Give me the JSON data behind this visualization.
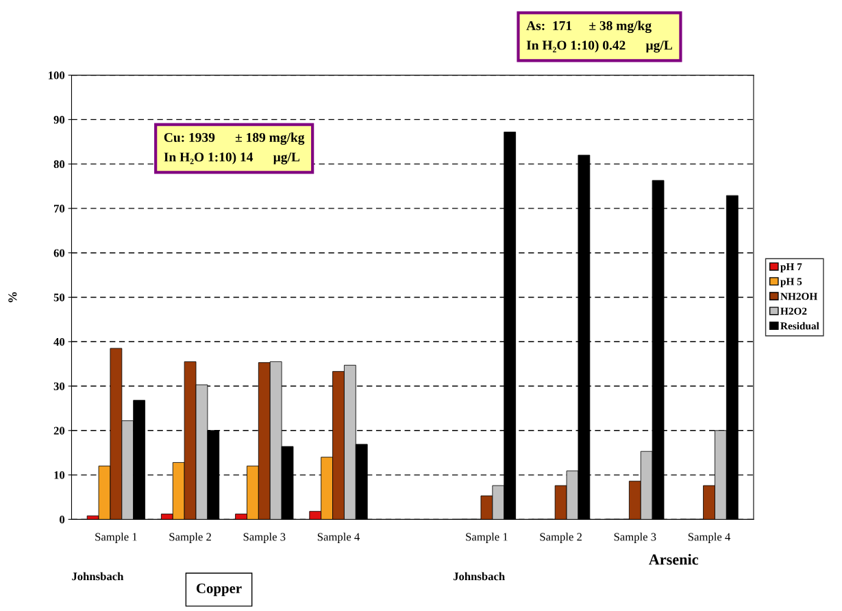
{
  "chart_data": {
    "type": "bar",
    "ylabel": "%",
    "categories": [
      "Sample 1",
      "Sample 2",
      "Sample 3",
      "Sample 4",
      null,
      "Sample 1",
      "Sample 2",
      "Sample 3",
      "Sample 4"
    ],
    "series": [
      {
        "name": "pH 7",
        "color": "#e01010",
        "values": [
          0.8,
          1.2,
          1.2,
          1.8,
          null,
          0,
          0,
          0,
          0
        ]
      },
      {
        "name": "pH 5",
        "color": "#f5a020",
        "values": [
          12,
          12.8,
          12,
          14,
          null,
          0,
          0,
          0,
          0
        ]
      },
      {
        "name": "NH2OH",
        "color": "#9a3a08",
        "values": [
          38.5,
          35.5,
          35.3,
          33.3,
          null,
          5.3,
          7.6,
          8.6,
          7.6
        ]
      },
      {
        "name": "H2O2",
        "color": "#c0c0c0",
        "values": [
          22.2,
          30.3,
          35.5,
          34.7,
          null,
          7.6,
          10.9,
          15.3,
          20
        ]
      },
      {
        "name": "Residual",
        "color": "#000000",
        "values": [
          26.8,
          20,
          16.4,
          16.9,
          null,
          87.2,
          82,
          76.3,
          72.9
        ]
      }
    ],
    "ylim": [
      0,
      100
    ],
    "yticks": [
      0,
      10,
      20,
      30,
      40,
      50,
      60,
      70,
      80,
      90,
      100
    ],
    "grid": "y",
    "legend": "right",
    "annotations": [
      "Cu: 1939      ± 189 mg/kg\nIn H₂O 1:10) 14      µg/L",
      "As:  171     ± 38 mg/kg\nIn H₂O 1:10) 0.42      µg/L",
      "Johnsbach",
      "Copper",
      "Johnsbach",
      "Arsenic"
    ]
  }
}
